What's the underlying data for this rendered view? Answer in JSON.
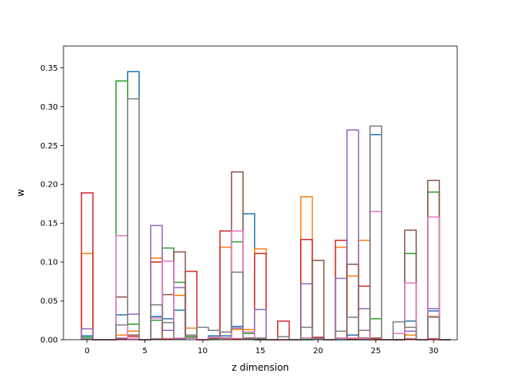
{
  "chart_data": {
    "type": "step-histogram",
    "xlabel": "z dimension",
    "ylabel": "w",
    "xlim": [
      -2.05,
      32.05
    ],
    "ylim": [
      0,
      0.378
    ],
    "xticks": [
      0,
      5,
      10,
      15,
      20,
      25,
      30
    ],
    "yticks": [
      0.0,
      0.05,
      0.1,
      0.15,
      0.2,
      0.25,
      0.3,
      0.35
    ],
    "ytick_labels": [
      "0.00",
      "0.05",
      "0.10",
      "0.15",
      "0.20",
      "0.25",
      "0.30",
      "0.35"
    ],
    "grid": false,
    "legend": "none",
    "bin_width": 1,
    "x_start": -0.5,
    "series": [
      {
        "color": "#1f77b4",
        "values": [
          0.005,
          0,
          0,
          0.032,
          0.345,
          0,
          0.03,
          0.027,
          0.038,
          0.004,
          0,
          0.005,
          0.005,
          0.017,
          0.162,
          0,
          0,
          0,
          0,
          0,
          0.003,
          0,
          0,
          0.006,
          0,
          0.264,
          0,
          0,
          0.024,
          0,
          0.037,
          0
        ]
      },
      {
        "color": "#ff7f0e",
        "values": [
          0.111,
          0,
          0,
          0.006,
          0.011,
          0,
          0.105,
          0.012,
          0.057,
          0.015,
          0,
          0.001,
          0.119,
          0.013,
          0.013,
          0.117,
          0,
          0,
          0,
          0.184,
          0.003,
          0,
          0.119,
          0.082,
          0.128,
          0.001,
          0,
          0,
          0.006,
          0,
          0.03,
          0
        ]
      },
      {
        "color": "#2ca02c",
        "values": [
          0.003,
          0,
          0,
          0.333,
          0.02,
          0,
          0.025,
          0.118,
          0.074,
          0.004,
          0,
          0.001,
          0.001,
          0.126,
          0.008,
          0,
          0,
          0,
          0,
          0,
          0.001,
          0,
          0.002,
          0,
          0.001,
          0.027,
          0,
          0,
          0.111,
          0,
          0.19,
          0
        ]
      },
      {
        "color": "#d62728",
        "values": [
          0.189,
          0,
          0,
          0.001,
          0.004,
          0,
          0.1,
          0.001,
          0.001,
          0.088,
          0,
          0.002,
          0.14,
          0.001,
          0.001,
          0.111,
          0,
          0.024,
          0,
          0.129,
          0.003,
          0,
          0.128,
          0.001,
          0.069,
          0,
          0,
          0,
          0.001,
          0,
          0.001,
          0
        ]
      },
      {
        "color": "#9467bd",
        "values": [
          0.014,
          0,
          0,
          0.002,
          0.033,
          0,
          0.147,
          0.012,
          0.067,
          0.002,
          0,
          0.002,
          0.002,
          0.015,
          0.002,
          0.039,
          0,
          0,
          0,
          0.072,
          0.002,
          0,
          0.079,
          0.27,
          0.04,
          0.002,
          0,
          0,
          0.011,
          0,
          0.04,
          0
        ]
      },
      {
        "color": "#8c564b",
        "values": [
          0.001,
          0,
          0,
          0.055,
          0.006,
          0,
          0.001,
          0.058,
          0.113,
          0.002,
          0,
          0.002,
          0.002,
          0.216,
          0.002,
          0.001,
          0,
          0,
          0,
          0.002,
          0.102,
          0,
          0.002,
          0.097,
          0.002,
          0.002,
          0,
          0,
          0.141,
          0,
          0.205,
          0
        ]
      },
      {
        "color": "#e377c2",
        "values": [
          0.001,
          0,
          0,
          0.134,
          0.001,
          0,
          0.028,
          0.101,
          0.002,
          0.002,
          0,
          0.003,
          0.001,
          0.14,
          0.01,
          0.002,
          0,
          0,
          0,
          0.002,
          0.001,
          0,
          0.002,
          0.002,
          0.001,
          0.165,
          0,
          0.008,
          0.073,
          0,
          0.158,
          0
        ]
      },
      {
        "color": "#7f7f7f",
        "values": [
          0.001,
          0,
          0,
          0.019,
          0.31,
          0,
          0.045,
          0.022,
          0.001,
          0.006,
          0.016,
          0.012,
          0.01,
          0.087,
          0.001,
          0.002,
          0,
          0.004,
          0,
          0.016,
          0.001,
          0,
          0.011,
          0.029,
          0.012,
          0.275,
          0,
          0.023,
          0.016,
          0,
          0.029,
          0
        ]
      }
    ]
  }
}
